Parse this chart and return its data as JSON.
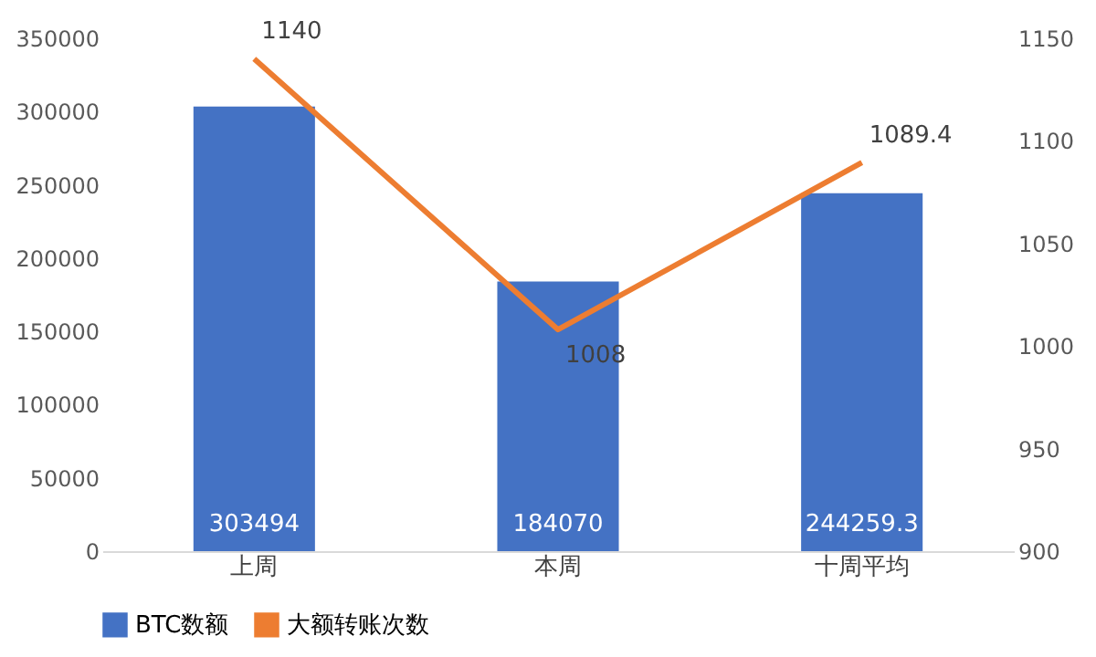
{
  "chart_data": {
    "type": "bar",
    "categories": [
      "上周",
      "本周",
      "十周平均"
    ],
    "series": [
      {
        "name": "BTC数额",
        "color": "#4472c4",
        "values": [
          303494,
          184070,
          244259.3
        ]
      },
      {
        "name": "大额转账次数",
        "type": "line",
        "axis": "y2",
        "color": "#ed7d31",
        "values": [
          1140,
          1008,
          1089.4
        ]
      }
    ],
    "ylim": [
      0,
      350000
    ],
    "yticks": [
      0,
      50000,
      100000,
      150000,
      200000,
      250000,
      300000,
      350000
    ],
    "y2lim": [
      900,
      1150
    ],
    "y2ticks": [
      900,
      950,
      1000,
      1050,
      1100,
      1150
    ],
    "data_labels": true,
    "grid": false,
    "legend": "bottom"
  }
}
